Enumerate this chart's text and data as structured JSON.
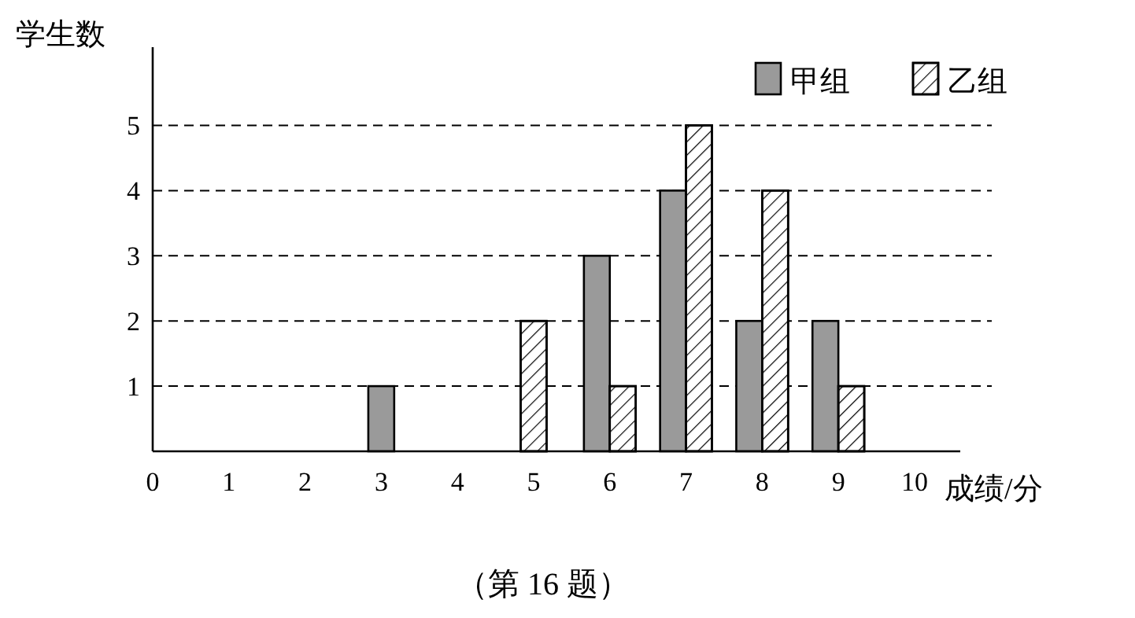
{
  "chart_data": {
    "type": "bar",
    "xlabel": "成绩/分",
    "ylabel": "学生数",
    "x": [
      3,
      5,
      6,
      7,
      8,
      9
    ],
    "series": [
      {
        "name": "甲组",
        "color": "#9a9a9a",
        "values": [
          1,
          null,
          3,
          4,
          2,
          2
        ]
      },
      {
        "name": "乙组",
        "color": "#ffffff",
        "values": [
          null,
          2,
          1,
          5,
          4,
          1
        ]
      }
    ],
    "xlim": [
      0,
      10.6
    ],
    "xticks": [
      0,
      1,
      2,
      3,
      4,
      5,
      6,
      7,
      8,
      9,
      10
    ],
    "ylim": [
      0,
      6.2
    ],
    "yticks": [
      {
        "value": 0,
        "label": null
      },
      1,
      2,
      3,
      4,
      5
    ],
    "grid": "y",
    "legend": "top right",
    "annotations": [
      "（第 16 题）"
    ]
  }
}
